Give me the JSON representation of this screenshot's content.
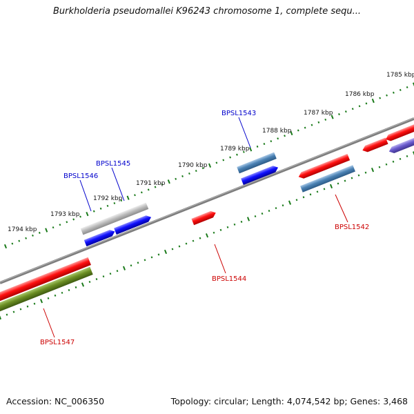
{
  "title": "Burkholderia pseudomallei K96243 chromosome 1, complete sequ...",
  "footer": {
    "accession": "Accession: NC_006350",
    "summary": "Topology: circular; Length: 4,074,542 bp; Genes: 3,468"
  },
  "colors": {
    "backbone": "#808080",
    "tick": "#1a7a1a",
    "label_blue": "#0000cc",
    "label_red": "#cc0000"
  },
  "ticks": [
    {
      "label": "1794 kbp"
    },
    {
      "label": "1793 kbp"
    },
    {
      "label": "1792 kbp"
    },
    {
      "label": "1791 kbp"
    },
    {
      "label": "1790 kbp"
    },
    {
      "label": "1789 kbp"
    },
    {
      "label": "1788 kbp"
    },
    {
      "label": "1787 kbp"
    },
    {
      "label": "1786 kbp"
    },
    {
      "label": "1785 kbp"
    }
  ],
  "gene_labels": [
    {
      "label": "BPSL1543",
      "color": "#0000cc"
    },
    {
      "label": "BPSL1545",
      "color": "#0000cc"
    },
    {
      "label": "BPSL1546",
      "color": "#0000cc"
    },
    {
      "label": "BPSL1542",
      "color": "#cc0000"
    },
    {
      "label": "BPSL1544",
      "color": "#cc0000"
    },
    {
      "label": "BPSL1547",
      "color": "#cc0000"
    }
  ]
}
